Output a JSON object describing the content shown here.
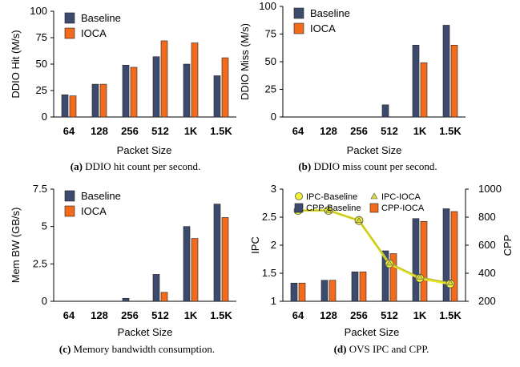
{
  "colors": {
    "baseline": "#3c4a6e",
    "ioca": "#f26a1b",
    "ipc_line": "#e6e621",
    "ipc_marker": "#f2f22e"
  },
  "chart_data": [
    {
      "id": "a",
      "type": "bar",
      "caption_label": "(a)",
      "caption_text": "DDIO hit count per second.",
      "xlabel": "Packet Size",
      "ylabel": "DDIO Hit (M/s)",
      "ylim": [
        0,
        100
      ],
      "yticks": [
        "0",
        "25",
        "50",
        "75",
        "100"
      ],
      "categories": [
        "64",
        "128",
        "256",
        "512",
        "1K",
        "1.5K"
      ],
      "legend_position": "top-left",
      "series": [
        {
          "name": "Baseline",
          "values": [
            21,
            31,
            49,
            57,
            50,
            39
          ]
        },
        {
          "name": "IOCA",
          "values": [
            20,
            31,
            47,
            72,
            70,
            56
          ]
        }
      ]
    },
    {
      "id": "b",
      "type": "bar",
      "caption_label": "(b)",
      "caption_text": "DDIO miss count per second.",
      "xlabel": "Packet Size",
      "ylabel": "DDIO Miss (M/s)",
      "ylim": [
        0,
        100
      ],
      "yticks": [
        "0",
        "25",
        "50",
        "75",
        "100"
      ],
      "categories": [
        "64",
        "128",
        "256",
        "512",
        "1K",
        "1.5K"
      ],
      "legend_position": "top-left",
      "series": [
        {
          "name": "Baseline",
          "values": [
            0,
            0,
            0,
            11,
            65,
            83
          ]
        },
        {
          "name": "IOCA",
          "values": [
            0,
            0,
            0,
            0,
            49,
            65
          ]
        }
      ]
    },
    {
      "id": "c",
      "type": "bar",
      "caption_label": "(c)",
      "caption_text": "Memory bandwidth consumption.",
      "xlabel": "Packet Size",
      "ylabel": "Mem BW (GB/s)",
      "ylim": [
        0,
        7.5
      ],
      "yticks": [
        "0",
        "2.5",
        "5",
        "7.5"
      ],
      "categories": [
        "64",
        "128",
        "256",
        "512",
        "1K",
        "1.5K"
      ],
      "legend_position": "top-left",
      "series": [
        {
          "name": "Baseline",
          "values": [
            0,
            0,
            0.2,
            1.8,
            5.0,
            6.5
          ]
        },
        {
          "name": "IOCA",
          "values": [
            0,
            0,
            0,
            0.6,
            4.2,
            5.6
          ]
        }
      ]
    },
    {
      "id": "d",
      "type": "bar+line",
      "caption_label": "(d)",
      "caption_text": "OVS IPC and CPP.",
      "xlabel": "Packet Size",
      "ylabel": "IPC",
      "y2label": "CPP",
      "ylim": [
        1,
        3
      ],
      "yticks": [
        "1",
        "1.5",
        "2",
        "2.5",
        "3"
      ],
      "y2lim": [
        200,
        1000
      ],
      "y2ticks": [
        "200",
        "400",
        "600",
        "800",
        "1000"
      ],
      "categories": [
        "64",
        "128",
        "256",
        "512",
        "1K",
        "1.5K"
      ],
      "legend_position": "top",
      "line_series": [
        {
          "name": "IPC-Baseline",
          "values": [
            2.62,
            2.62,
            2.44,
            1.67,
            1.41,
            1.31
          ]
        },
        {
          "name": "IPC-IOCA",
          "values": [
            2.62,
            2.62,
            2.44,
            1.68,
            1.43,
            1.33
          ]
        }
      ],
      "bar_series": [
        {
          "name": "CPP-Baseline",
          "values": [
            330,
            350,
            410,
            560,
            790,
            860
          ]
        },
        {
          "name": "CPP-IOCA",
          "values": [
            330,
            350,
            410,
            540,
            770,
            840
          ]
        }
      ]
    }
  ]
}
